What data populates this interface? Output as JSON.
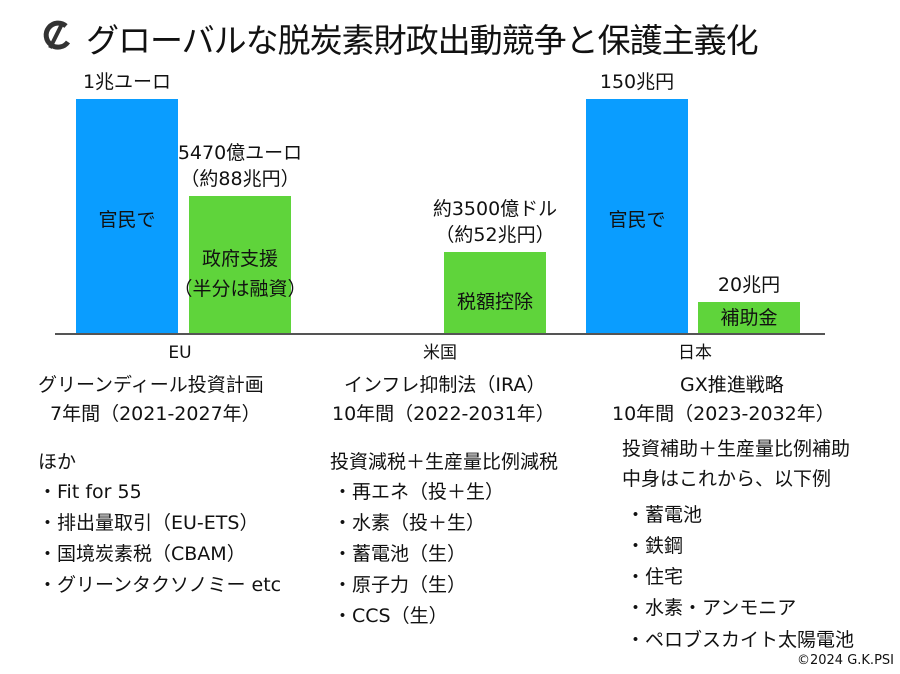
{
  "title": "グローバルな脱炭素財政出動競争と保護主義化",
  "logo_icon": "psi-logo-icon",
  "colors": {
    "public_private": "#0a9dff",
    "government": "#5fd43b"
  },
  "chart_data": {
    "type": "bar",
    "unit": "兆円 (approx.)",
    "ylim": [
      0,
      150
    ],
    "bars": [
      {
        "group": "EU",
        "value": 150,
        "color": "blue",
        "top_label": [
          "1兆ユーロ"
        ],
        "inner_label": [
          "官民で"
        ]
      },
      {
        "group": "EU",
        "value": 88,
        "color": "green",
        "top_label": [
          "5470億ユーロ",
          "（約88兆円）"
        ],
        "inner_label": [
          "政府支援",
          "（半分は融資）"
        ]
      },
      {
        "group": "米国",
        "value": 52,
        "color": "green",
        "top_label": [
          "約3500億ドル",
          "（約52兆円）"
        ],
        "inner_label": [
          "税額控除"
        ]
      },
      {
        "group": "日本",
        "value": 150,
        "color": "blue",
        "top_label": [
          "150兆円"
        ],
        "inner_label": [
          "官民で"
        ]
      },
      {
        "group": "日本",
        "value": 20,
        "color": "green",
        "top_label": [
          "20兆円"
        ],
        "inner_label": [
          "補助金"
        ]
      }
    ],
    "categories": [
      "EU",
      "米国",
      "日本"
    ]
  },
  "columns": {
    "eu": {
      "lines": [
        "グリーンディール投資計画",
        "7年間（2021-2027年）",
        "ほか",
        "・Fit for 55",
        "・排出量取引（EU-ETS）",
        "・国境炭素税（CBAM）",
        "・グリーンタクソノミー etc"
      ]
    },
    "us": {
      "lines": [
        "インフレ抑制法（IRA）",
        "10年間（2022-2031年）",
        "投資減税＋生産量比例減税",
        "・再エネ（投＋生）",
        "・水素（投＋生）",
        "・蓄電池（生）",
        "・原子力（生）",
        "・CCS（生）"
      ]
    },
    "jp": {
      "lines": [
        "GX推進戦略",
        "10年間（2023-2032年）",
        "投資補助＋生産量比例補助",
        "中身はこれから、以下例",
        "・蓄電池",
        "・鉄鋼",
        "・住宅",
        "・水素・アンモニア",
        "・ペロブスカイト太陽電池"
      ]
    }
  },
  "copyright": "©2024 G.K.PSI"
}
